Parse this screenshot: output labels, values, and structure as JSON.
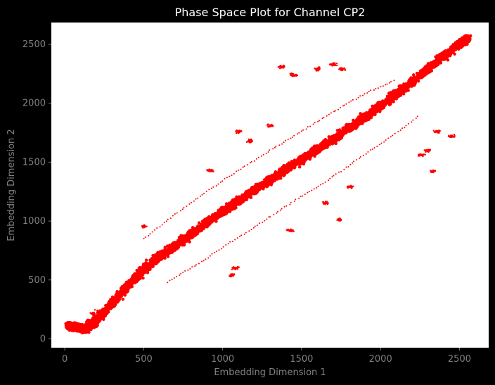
{
  "chart_data": {
    "type": "scatter",
    "title": "Phase Space Plot for Channel CP2",
    "xlabel": "Embedding Dimension 1",
    "ylabel": "Embedding Dimension 2",
    "xlim": [
      -85,
      2685
    ],
    "ylim": [
      -75,
      2685
    ],
    "xticks": [
      0,
      500,
      1000,
      1500,
      2000,
      2500
    ],
    "yticks": [
      0,
      500,
      1000,
      1500,
      2000,
      2500
    ],
    "grid": false,
    "colors": {
      "background": "#000000",
      "plot_area": "#ffffff",
      "marker": "#ff0000",
      "title": "#ffffff",
      "axis_text": "#808080"
    },
    "series": [
      {
        "color": "#ff0000",
        "description_points": "x,y pairs in data units",
        "main_band": [
          [
            30,
            110
          ],
          [
            80,
            95
          ],
          [
            130,
            85
          ],
          [
            180,
            130
          ],
          [
            230,
            200
          ],
          [
            300,
            300
          ],
          [
            380,
            420
          ],
          [
            450,
            520
          ],
          [
            520,
            610
          ],
          [
            600,
            700
          ],
          [
            700,
            790
          ],
          [
            800,
            890
          ],
          [
            900,
            990
          ],
          [
            1000,
            1080
          ],
          [
            1100,
            1170
          ],
          [
            1200,
            1260
          ],
          [
            1300,
            1350
          ],
          [
            1400,
            1440
          ],
          [
            1500,
            1520
          ],
          [
            1600,
            1610
          ],
          [
            1700,
            1690
          ],
          [
            1800,
            1790
          ],
          [
            1900,
            1880
          ],
          [
            2000,
            1980
          ],
          [
            2100,
            2080
          ],
          [
            2200,
            2180
          ],
          [
            2300,
            2290
          ],
          [
            2400,
            2400
          ],
          [
            2500,
            2500
          ],
          [
            2545,
            2545
          ]
        ],
        "thin_band_upper": [
          [
            500,
            850
          ],
          [
            700,
            1060
          ],
          [
            900,
            1250
          ],
          [
            1100,
            1430
          ],
          [
            1300,
            1600
          ],
          [
            1500,
            1760
          ],
          [
            1700,
            1930
          ],
          [
            1900,
            2080
          ],
          [
            2100,
            2200
          ]
        ],
        "thin_band_lower": [
          [
            650,
            480
          ],
          [
            850,
            640
          ],
          [
            1050,
            820
          ],
          [
            1250,
            990
          ],
          [
            1450,
            1170
          ],
          [
            1650,
            1330
          ],
          [
            1850,
            1520
          ],
          [
            2050,
            1700
          ],
          [
            2250,
            1900
          ]
        ],
        "clusters": [
          [
            55,
            120
          ],
          [
            90,
            125
          ],
          [
            120,
            100
          ],
          [
            150,
            150
          ],
          [
            180,
            210
          ],
          [
            215,
            230
          ],
          [
            200,
            160
          ],
          [
            500,
            955
          ],
          [
            920,
            1430
          ],
          [
            1100,
            1760
          ],
          [
            1175,
            1680
          ],
          [
            1300,
            1810
          ],
          [
            1380,
            2310
          ],
          [
            1450,
            2240
          ],
          [
            1600,
            2290
          ],
          [
            1700,
            2330
          ],
          [
            1760,
            2290
          ],
          [
            1060,
            540
          ],
          [
            1080,
            600
          ],
          [
            1430,
            920
          ],
          [
            1650,
            1150
          ],
          [
            1740,
            1010
          ],
          [
            1810,
            1290
          ],
          [
            2260,
            1560
          ],
          [
            2300,
            1600
          ],
          [
            2330,
            1420
          ],
          [
            2360,
            1760
          ],
          [
            2450,
            1720
          ]
        ]
      }
    ]
  }
}
